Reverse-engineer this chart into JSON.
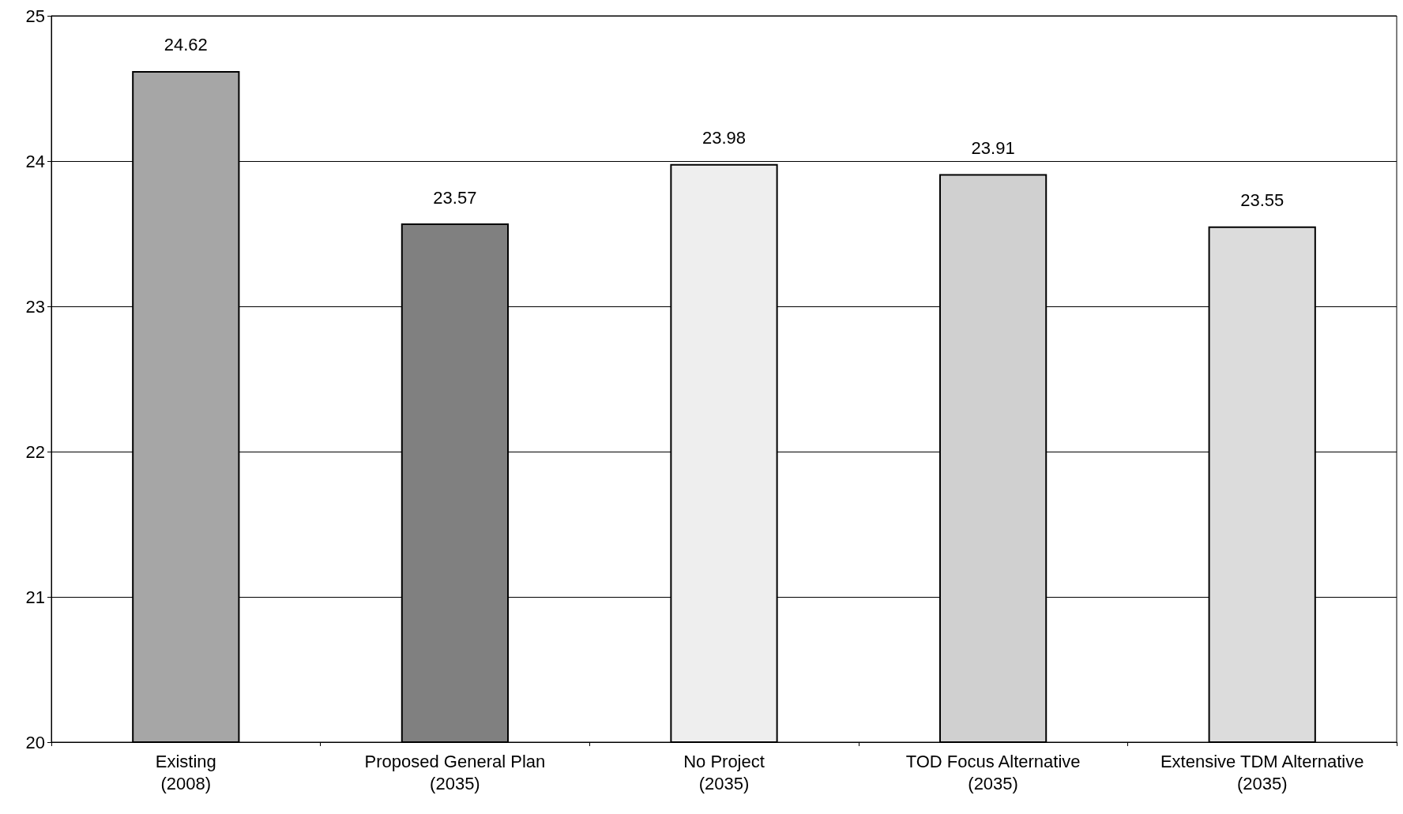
{
  "chart_data": {
    "type": "bar",
    "categories": [
      "Existing\n(2008)",
      "Proposed General Plan\n(2035)",
      "No Project\n(2035)",
      "TOD Focus Alternative\n(2035)",
      "Extensive TDM Alternative\n(2035)"
    ],
    "values": [
      24.62,
      23.57,
      23.98,
      23.91,
      23.55
    ],
    "colors": [
      "#a6a6a6",
      "#808080",
      "#eeeeee",
      "#d0d0d0",
      "#dcdcdc"
    ],
    "ylim": [
      20,
      25
    ],
    "yticks": [
      20,
      21,
      22,
      23,
      24,
      25
    ],
    "grid": "y",
    "data_labels": true
  }
}
